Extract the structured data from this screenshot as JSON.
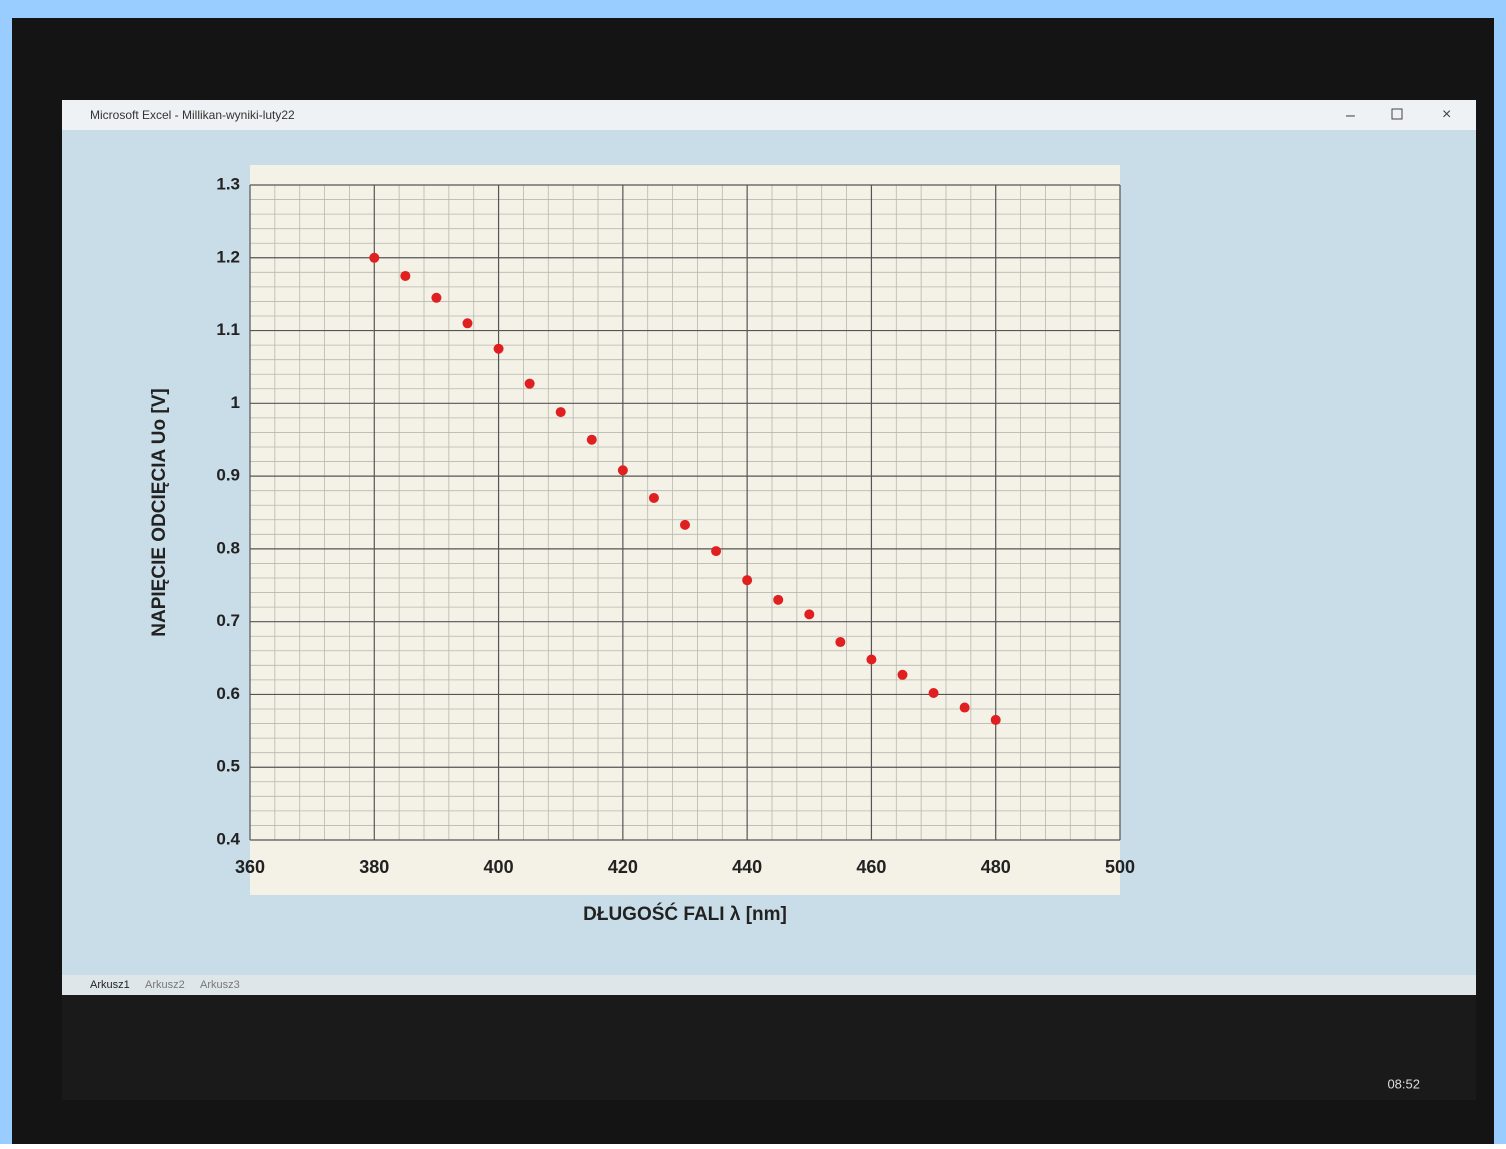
{
  "window_title": "Microsoft Excel - Millikan-wyniki-luty22",
  "sheet_tabs": [
    "Arkusz1",
    "Arkusz2",
    "Arkusz3"
  ],
  "clock": "08:52",
  "chart_data": {
    "type": "scatter",
    "x_label": "DŁUGOŚĆ FALI λ [nm]",
    "y_label": "NAPIĘCIE ODCIĘCIA Uo [V]",
    "x": [
      380,
      385,
      390,
      395,
      400,
      405,
      410,
      415,
      420,
      425,
      430,
      435,
      440,
      445,
      450,
      455,
      460,
      465,
      470,
      475,
      480
    ],
    "values": [
      1.2,
      1.175,
      1.145,
      1.11,
      1.075,
      1.027,
      0.988,
      0.95,
      0.908,
      0.87,
      0.833,
      0.797,
      0.757,
      0.73,
      0.71,
      0.672,
      0.648,
      0.627,
      0.602,
      0.582,
      0.565
    ],
    "color": "#e02020",
    "xlim": [
      360,
      500
    ],
    "xticks": [
      360,
      380,
      400,
      420,
      440,
      460,
      480,
      500
    ],
    "ylim": [
      0.4,
      1.3
    ],
    "yticks": [
      0.4,
      0.5,
      0.6,
      0.7,
      0.8,
      0.9,
      1,
      1.1,
      1.2,
      1.3
    ],
    "grid": true
  }
}
